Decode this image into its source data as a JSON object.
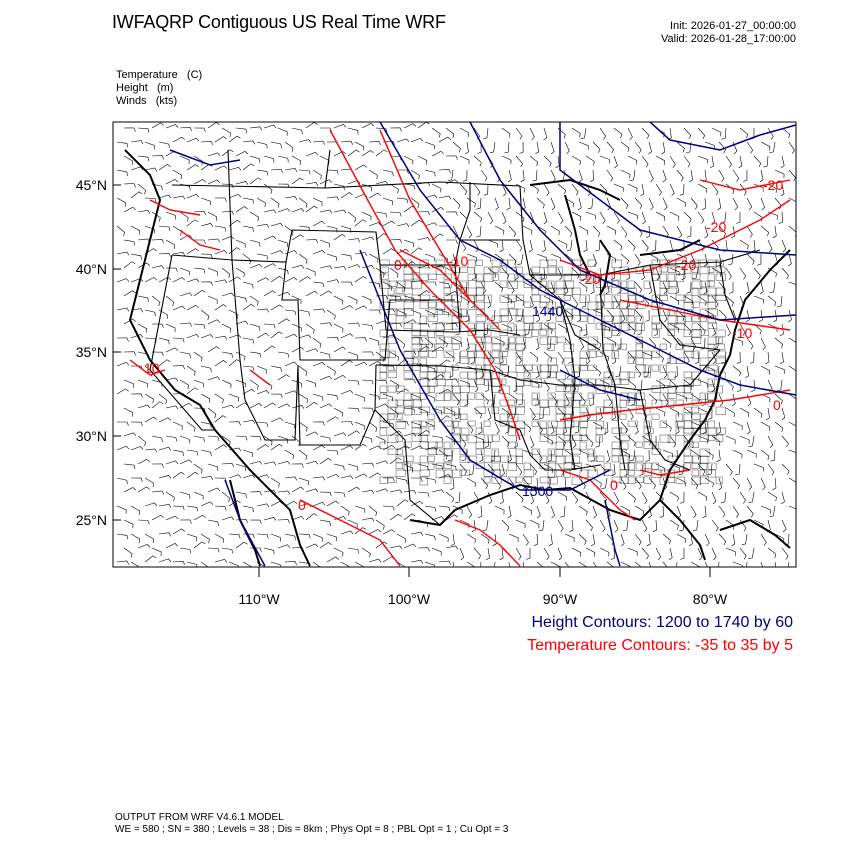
{
  "header": {
    "title": "IWFAQRP Contiguous US Real Time WRF",
    "init": "Init: 2026-01-27_00:00:00",
    "valid": "Valid: 2026-01-28_17:00:00"
  },
  "variables": {
    "temperature": "Temperature   (C)",
    "height": "Height   (m)",
    "winds": "Winds   (kts)"
  },
  "axes": {
    "lat_labels": [
      "45°N",
      "40°N",
      "35°N",
      "30°N",
      "25°N"
    ],
    "lon_labels": [
      "110°W",
      "100°W",
      "90°W",
      "80°W"
    ]
  },
  "contour_labels": {
    "height": [
      "1440",
      "1500"
    ],
    "temperature": [
      "0",
      "0",
      "-20",
      "-20",
      "-20",
      "-20",
      "-10",
      "10",
      "-10",
      "0",
      "0"
    ]
  },
  "legend": {
    "height": "Height Contours: 1200 to 1740 by 60",
    "temperature": "Temperature Contours: -35 to 35 by 5"
  },
  "colors": {
    "height": "#000080",
    "temperature": "#ff0000",
    "borders": "#000000"
  },
  "footer": {
    "line1": "OUTPUT FROM WRF V4.6.1 MODEL",
    "line2": "WE = 580 ; SN = 380 ; Levels = 38 ; Dis = 8km ; Phys Opt = 8 ; PBL Opt = 1 ; Cu Opt = 3"
  }
}
